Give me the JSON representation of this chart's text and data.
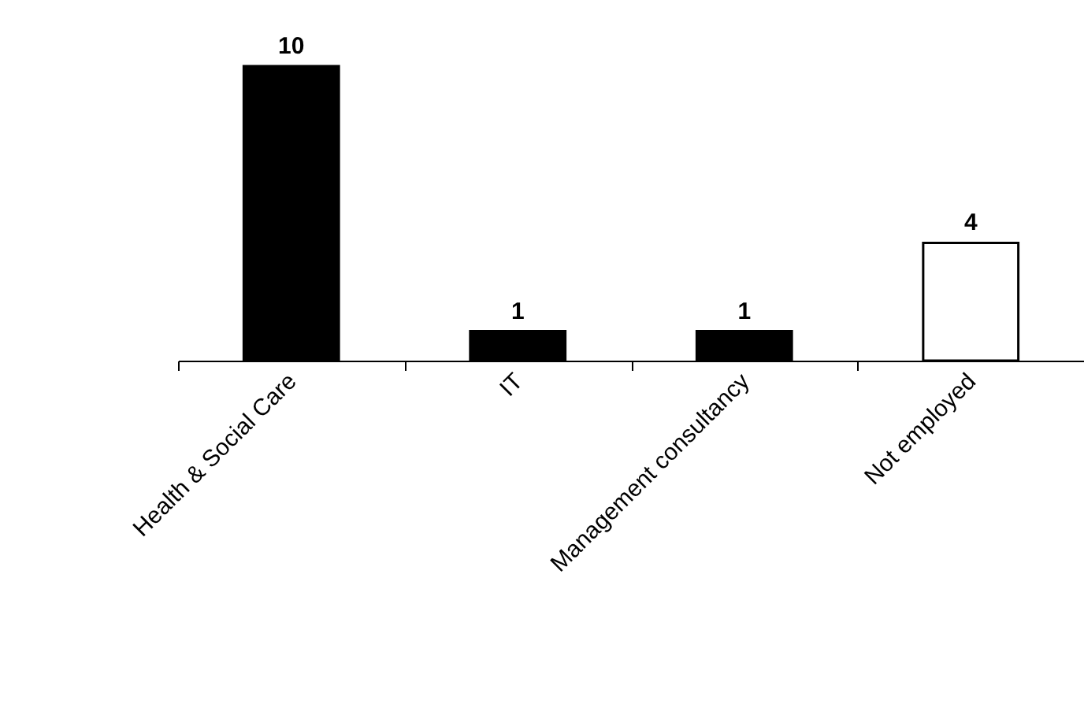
{
  "chart_data": {
    "type": "bar",
    "categories": [
      "Health & Social Care",
      "IT",
      "Management consultancy",
      "Not employed"
    ],
    "values": [
      10,
      1,
      1,
      4
    ],
    "colors": [
      "#000000",
      "#000000",
      "#000000",
      "#ffffff"
    ],
    "data_labels": true,
    "tick_labels": "x"
  }
}
